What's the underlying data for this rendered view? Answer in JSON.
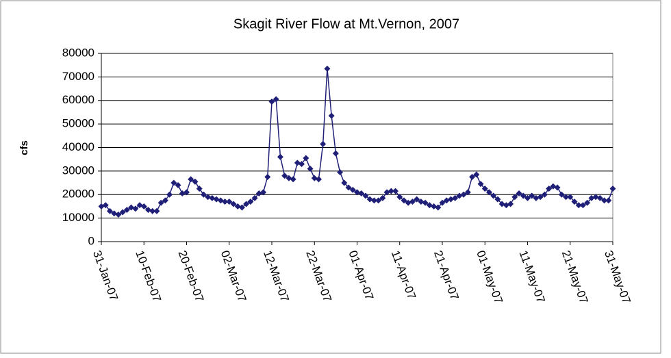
{
  "chart_data": {
    "type": "line",
    "title": "Skagit River Flow at Mt.Vernon, 2007",
    "y_label": "cfs",
    "color": "#1f1f78",
    "grid": true,
    "marker": "diamond",
    "x": [
      "2007-01-31",
      "2007-02-01",
      "2007-02-02",
      "2007-02-03",
      "2007-02-04",
      "2007-02-05",
      "2007-02-06",
      "2007-02-07",
      "2007-02-08",
      "2007-02-09",
      "2007-02-10",
      "2007-02-11",
      "2007-02-12",
      "2007-02-13",
      "2007-02-14",
      "2007-02-15",
      "2007-02-16",
      "2007-02-17",
      "2007-02-18",
      "2007-02-19",
      "2007-02-20",
      "2007-02-21",
      "2007-02-22",
      "2007-02-23",
      "2007-02-24",
      "2007-02-25",
      "2007-02-26",
      "2007-02-27",
      "2007-02-28",
      "2007-03-01",
      "2007-03-02",
      "2007-03-03",
      "2007-03-04",
      "2007-03-05",
      "2007-03-06",
      "2007-03-07",
      "2007-03-08",
      "2007-03-09",
      "2007-03-10",
      "2007-03-11",
      "2007-03-12",
      "2007-03-13",
      "2007-03-14",
      "2007-03-15",
      "2007-03-16",
      "2007-03-17",
      "2007-03-18",
      "2007-03-19",
      "2007-03-20",
      "2007-03-21",
      "2007-03-22",
      "2007-03-23",
      "2007-03-24",
      "2007-03-25",
      "2007-03-26",
      "2007-03-27",
      "2007-03-28",
      "2007-03-29",
      "2007-03-30",
      "2007-03-31",
      "2007-04-01",
      "2007-04-02",
      "2007-04-03",
      "2007-04-04",
      "2007-04-05",
      "2007-04-06",
      "2007-04-07",
      "2007-04-08",
      "2007-04-09",
      "2007-04-10",
      "2007-04-11",
      "2007-04-12",
      "2007-04-13",
      "2007-04-14",
      "2007-04-15",
      "2007-04-16",
      "2007-04-17",
      "2007-04-18",
      "2007-04-19",
      "2007-04-20",
      "2007-04-21",
      "2007-04-22",
      "2007-04-23",
      "2007-04-24",
      "2007-04-25",
      "2007-04-26",
      "2007-04-27",
      "2007-04-28",
      "2007-04-29",
      "2007-04-30",
      "2007-05-01",
      "2007-05-02",
      "2007-05-03",
      "2007-05-04",
      "2007-05-05",
      "2007-05-06",
      "2007-05-07",
      "2007-05-08",
      "2007-05-09",
      "2007-05-10",
      "2007-05-11",
      "2007-05-12",
      "2007-05-13",
      "2007-05-14",
      "2007-05-15",
      "2007-05-16",
      "2007-05-17",
      "2007-05-18",
      "2007-05-19",
      "2007-05-20",
      "2007-05-21",
      "2007-05-22",
      "2007-05-23",
      "2007-05-24",
      "2007-05-25",
      "2007-05-26",
      "2007-05-27",
      "2007-05-28",
      "2007-05-29",
      "2007-05-30",
      "2007-05-31"
    ],
    "values": [
      15000,
      15500,
      13000,
      12000,
      11500,
      12500,
      13500,
      14500,
      14000,
      15500,
      15000,
      13500,
      13000,
      13000,
      16500,
      17500,
      20000,
      25000,
      24000,
      20500,
      21000,
      26500,
      25500,
      22500,
      20000,
      19000,
      18500,
      18000,
      17500,
      17000,
      17000,
      16000,
      15000,
      14500,
      16000,
      17000,
      18500,
      20500,
      21000,
      27500,
      59500,
      60500,
      36000,
      28000,
      27000,
      26500,
      33500,
      33000,
      35500,
      31000,
      27000,
      26500,
      41500,
      73500,
      53500,
      37500,
      29500,
      25000,
      23000,
      22000,
      21000,
      20500,
      19500,
      18000,
      17500,
      17500,
      18500,
      21000,
      21500,
      21500,
      19000,
      17500,
      16500,
      17000,
      18000,
      17000,
      16500,
      15500,
      15000,
      14500,
      16500,
      17500,
      18000,
      18500,
      19500,
      20000,
      21000,
      27500,
      28500,
      24500,
      22500,
      21000,
      19500,
      18000,
      16000,
      15500,
      16000,
      19000,
      20500,
      19500,
      18500,
      19500,
      18500,
      19000,
      20000,
      22500,
      23500,
      23000,
      20000,
      19000,
      19000,
      17000,
      15500,
      15500,
      16500,
      18500,
      19000,
      18500,
      17500,
      17500,
      22500
    ],
    "xlim": [
      "2007-01-31",
      "2007-05-31"
    ],
    "xticks": [
      {
        "value": "2007-01-31",
        "label": "31-Jan-07"
      },
      {
        "value": "2007-02-10",
        "label": "10-Feb-07"
      },
      {
        "value": "2007-02-20",
        "label": "20-Feb-07"
      },
      {
        "value": "2007-03-02",
        "label": "02-Mar-07"
      },
      {
        "value": "2007-03-12",
        "label": "12-Mar-07"
      },
      {
        "value": "2007-03-22",
        "label": "22-Mar-07"
      },
      {
        "value": "2007-04-01",
        "label": "01-Apr-07"
      },
      {
        "value": "2007-04-11",
        "label": "11-Apr-07"
      },
      {
        "value": "2007-04-21",
        "label": "21-Apr-07"
      },
      {
        "value": "2007-05-01",
        "label": "01-May-07"
      },
      {
        "value": "2007-05-11",
        "label": "11-May-07"
      },
      {
        "value": "2007-05-21",
        "label": "21-May-07"
      },
      {
        "value": "2007-05-31",
        "label": "31-May-07"
      }
    ],
    "ylim": [
      0,
      80000
    ],
    "yticks": [
      0,
      10000,
      20000,
      30000,
      40000,
      50000,
      60000,
      70000,
      80000
    ]
  }
}
